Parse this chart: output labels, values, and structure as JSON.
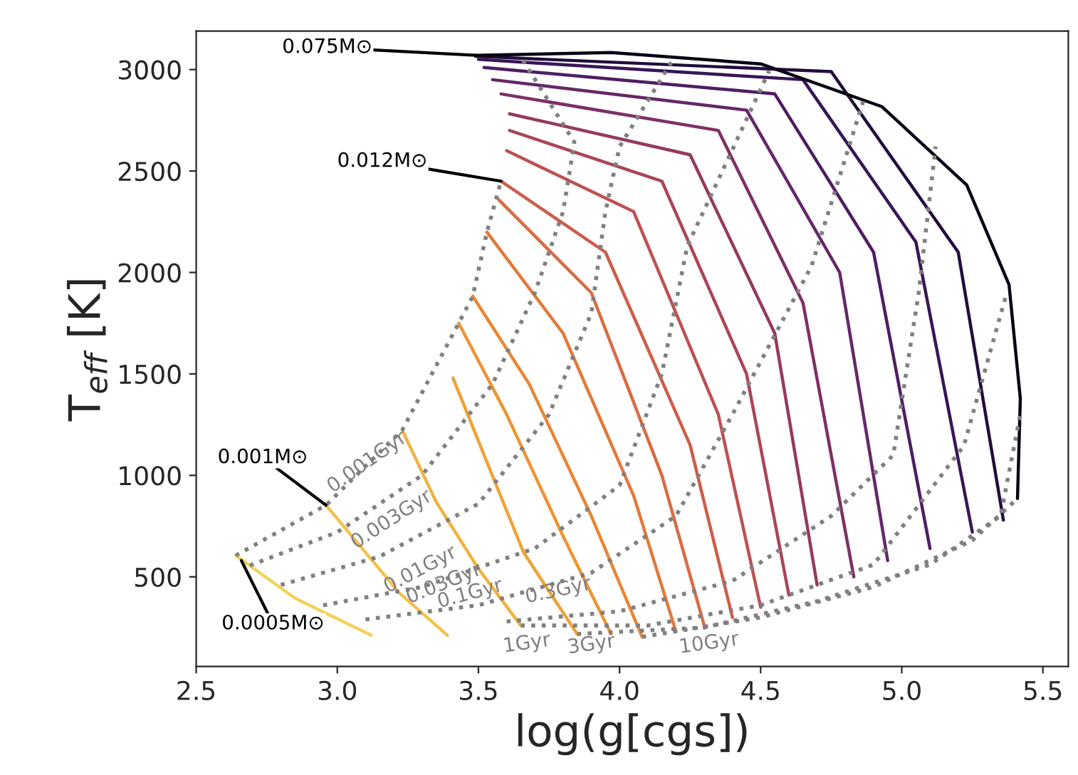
{
  "chart_data": {
    "type": "line",
    "xlabel": "log(g[cgs])",
    "ylabel": "T$_{eff}$ [K]",
    "xlim": [
      2.5,
      5.59
    ],
    "ylim": [
      58,
      3190
    ],
    "xticks": [
      2.5,
      {
        "value": 3,
        "label": "3.0"
      },
      3.5,
      {
        "value": 4,
        "label": "4.0"
      },
      4.5,
      {
        "value": 5,
        "label": "5.0"
      },
      5.5
    ],
    "yticks": [
      500,
      1000,
      1500,
      2000,
      2500,
      3000
    ],
    "grid": false,
    "marker": "none",
    "series": [
      {
        "color": "#f3d25a",
        "line_style": "solid",
        "x": [
          2.64,
          2.85,
          3.12
        ],
        "values": [
          605,
          395,
          212
        ]
      },
      {
        "color": "#f2c24a",
        "line_style": "solid",
        "x": [
          2.96,
          3.1,
          3.22,
          3.39
        ],
        "values": [
          853,
          620,
          420,
          212
        ]
      },
      {
        "color": "#f1b23f",
        "line_style": "solid",
        "x": [
          3.23,
          3.35,
          3.5,
          3.65
        ],
        "values": [
          1223,
          870,
          540,
          260
        ]
      },
      {
        "color": "#f0a236",
        "line_style": "solid",
        "x": [
          3.41,
          3.52,
          3.66,
          3.85
        ],
        "values": [
          1480,
          1100,
          620,
          218
        ]
      },
      {
        "color": "#ee9433",
        "line_style": "solid",
        "x": [
          3.43,
          3.6,
          3.8,
          3.97
        ],
        "values": [
          1750,
          1300,
          700,
          218
        ]
      },
      {
        "color": "#ea8634",
        "line_style": "solid",
        "x": [
          3.48,
          3.68,
          3.9,
          4.08
        ],
        "values": [
          1883,
          1450,
          800,
          204
        ]
      },
      {
        "color": "#e27a3a",
        "line_style": "solid",
        "x": [
          3.53,
          3.8,
          4.05,
          4.2
        ],
        "values": [
          2199,
          1700,
          900,
          230
        ]
      },
      {
        "color": "#d86c42",
        "line_style": "solid",
        "x": [
          3.57,
          3.9,
          4.15,
          4.3
        ],
        "values": [
          2361,
          1900,
          1000,
          260
        ]
      },
      {
        "color": "#cc5e4a",
        "line_style": "solid",
        "x": [
          3.58,
          3.95,
          4.25,
          4.4
        ],
        "values": [
          2450,
          2100,
          1150,
          300
        ]
      },
      {
        "color": "#bd5152",
        "line_style": "solid",
        "x": [
          3.6,
          4.05,
          4.35,
          4.5
        ],
        "values": [
          2600,
          2300,
          1300,
          350
        ]
      },
      {
        "color": "#aa4558",
        "line_style": "solid",
        "x": [
          3.61,
          4.15,
          4.45,
          4.6
        ],
        "values": [
          2700,
          2450,
          1500,
          410
        ]
      },
      {
        "color": "#943a5e",
        "line_style": "solid",
        "x": [
          3.61,
          4.25,
          4.55,
          4.7
        ],
        "values": [
          2782,
          2580,
          1700,
          460
        ]
      },
      {
        "color": "#7d3064",
        "line_style": "solid",
        "x": [
          3.58,
          4.35,
          4.65,
          4.83
        ],
        "values": [
          2880,
          2700,
          1850,
          500
        ]
      },
      {
        "color": "#652767",
        "line_style": "solid",
        "x": [
          3.55,
          4.45,
          4.78,
          4.95
        ],
        "values": [
          2950,
          2800,
          2000,
          580
        ]
      },
      {
        "color": "#4e1e63",
        "line_style": "solid",
        "x": [
          3.52,
          4.55,
          4.9,
          5.1
        ],
        "values": [
          3010,
          2880,
          2100,
          640
        ]
      },
      {
        "color": "#371656",
        "line_style": "solid",
        "x": [
          3.5,
          4.65,
          5.05,
          5.25
        ],
        "values": [
          3050,
          2950,
          2150,
          720
        ]
      },
      {
        "color": "#210e3d",
        "line_style": "solid",
        "x": [
          3.49,
          4.75,
          5.2,
          5.36
        ],
        "values": [
          3065,
          2990,
          2100,
          780
        ]
      },
      {
        "color": "#0a0514",
        "line_style": "solid",
        "x": [
          3.49,
          3.97,
          4.5,
          4.93,
          5.23,
          5.38,
          5.42,
          5.41
        ],
        "values": [
          3070,
          3084,
          3028,
          2817,
          2431,
          1940,
          1378,
          886
        ]
      },
      {
        "color": "#808080",
        "line_style": "dotted",
        "x": [
          2.64,
          2.96,
          3.23,
          3.43,
          3.48,
          3.53,
          3.58
        ],
        "values": [
          605,
          853,
          1223,
          1750,
          1883,
          2199,
          2450
        ]
      },
      {
        "color": "#808080",
        "line_style": "dotted",
        "x": [
          2.69,
          3.0,
          3.3,
          3.55,
          3.7,
          3.8,
          3.84,
          3.65
        ],
        "values": [
          556,
          720,
          1000,
          1450,
          1900,
          2300,
          2642,
          3063
        ]
      },
      {
        "color": "#808080",
        "line_style": "dotted",
        "x": [
          2.8,
          3.15,
          3.5,
          3.75,
          3.9,
          3.95,
          4.0,
          4.19
        ],
        "values": [
          460,
          600,
          860,
          1300,
          1800,
          2300,
          2620,
          3050
        ]
      },
      {
        "color": "#808080",
        "line_style": "dotted",
        "x": [
          2.95,
          3.3,
          3.7,
          4.0,
          4.15,
          4.24,
          4.53
        ],
        "values": [
          360,
          450,
          640,
          950,
          1500,
          2130,
          2993
        ]
      },
      {
        "color": "#808080",
        "line_style": "dotted",
        "x": [
          3.1,
          3.5,
          3.9,
          4.2,
          4.4,
          4.68,
          4.87
        ],
        "values": [
          290,
          360,
          520,
          800,
          1300,
          2031,
          2873
        ]
      },
      {
        "color": "#808080",
        "line_style": "dotted",
        "x": [
          3.6,
          4.0,
          4.4,
          4.75,
          4.97,
          5.06,
          5.12
        ],
        "values": [
          280,
          330,
          480,
          800,
          1100,
          1900,
          2621
        ]
      },
      {
        "color": "#808080",
        "line_style": "dotted",
        "x": [
          3.65,
          4.1,
          4.5,
          4.9,
          5.22,
          5.37
        ],
        "values": [
          260,
          260,
          360,
          560,
          1146,
          1890
        ]
      },
      {
        "color": "#808080",
        "line_style": "dotted",
        "x": [
          3.85,
          4.3,
          4.7,
          5.1,
          5.35,
          5.42
        ],
        "values": [
          218,
          250,
          380,
          560,
          800,
          1300
        ]
      },
      {
        "color": "#808080",
        "line_style": "dotted",
        "x": [
          4.08,
          4.5,
          4.9,
          5.25,
          5.41
        ],
        "values": [
          204,
          300,
          450,
          680,
          886
        ]
      }
    ],
    "annotations": [
      {
        "text": "0.075M⊙",
        "x": 3.49,
        "y": 3070
      },
      {
        "text": "0.012M⊙",
        "x": 3.58,
        "y": 2450
      },
      {
        "text": "0.001M⊙",
        "x": 2.96,
        "y": 853
      },
      {
        "text": "0.0005M⊙",
        "x": 2.66,
        "y": 580
      },
      "0.001Gyr",
      "0.003Gyr",
      "0.01Gyr",
      "0.03Gyr",
      "0.1Gyr",
      "0.3Gyr",
      "1Gyr",
      "3Gyr",
      "10Gyr"
    ]
  }
}
